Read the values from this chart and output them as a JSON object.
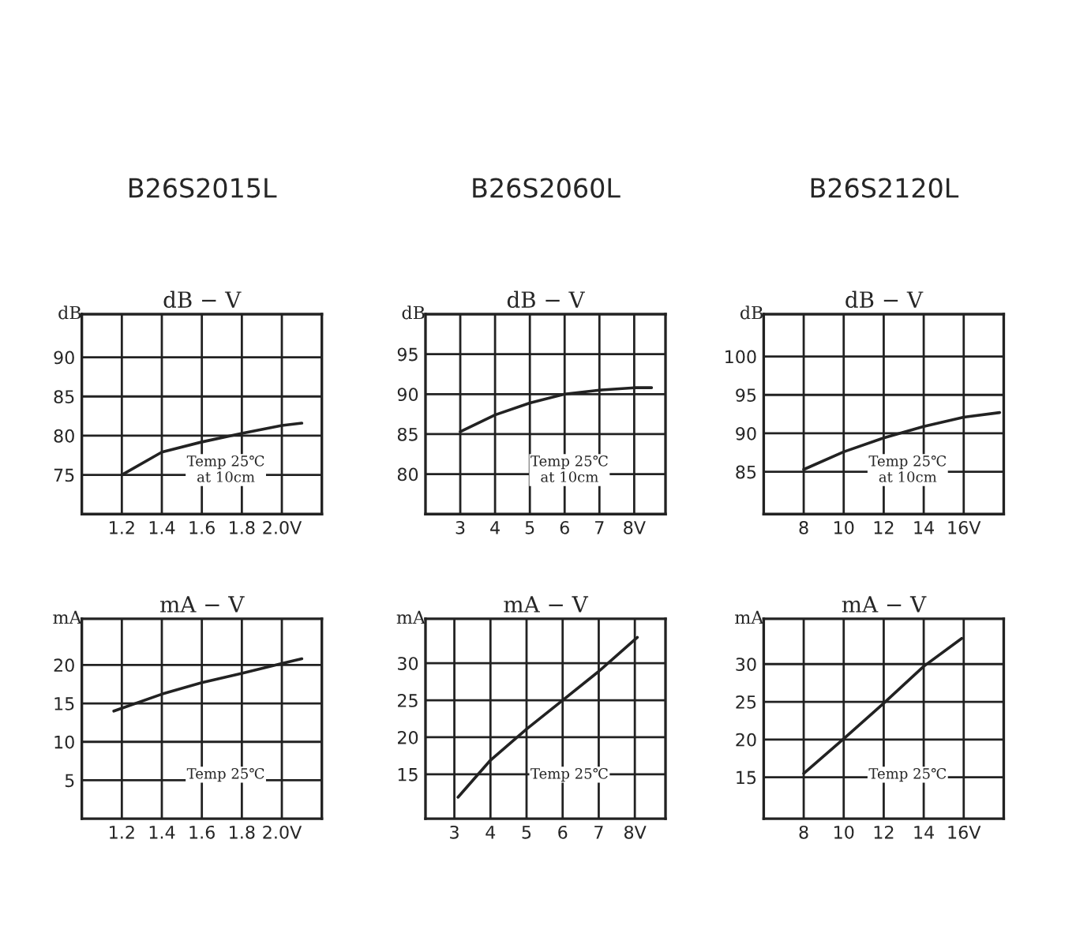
{
  "chart_data": [
    {
      "type": "line",
      "subtitle": "B26S2015L",
      "title": "dB − V",
      "ylabel": "dB",
      "xlim": [
        1.0,
        2.2
      ],
      "ylim": [
        70,
        95.5
      ],
      "xticks": [
        1.2,
        1.4,
        1.6,
        1.8,
        {
          "value": 2.0,
          "label": "2.0V"
        }
      ],
      "yticks": [
        75,
        80,
        85,
        90
      ],
      "grid": true,
      "annotations": [
        "Temp 25℃\nat 10cm"
      ],
      "series": [
        {
          "color": "#222222",
          "x": [
            1.2,
            1.4,
            1.6,
            1.8,
            2.0,
            2.1
          ],
          "values": [
            75,
            77.9,
            79.2,
            80.3,
            81.3,
            81.6
          ]
        }
      ]
    },
    {
      "type": "line",
      "subtitle": "B26S2060L",
      "title": "dB − V",
      "ylabel": "dB",
      "xlim": [
        2.0,
        8.9
      ],
      "ylim": [
        75,
        100
      ],
      "xticks": [
        3,
        4,
        5,
        6,
        7,
        {
          "value": 8,
          "label": "8V"
        }
      ],
      "yticks": [
        80,
        85,
        90,
        95
      ],
      "grid": true,
      "annotations": [
        "Temp 25℃\nat 10cm"
      ],
      "series": [
        {
          "color": "#222222",
          "x": [
            3,
            4,
            5,
            6,
            7,
            8,
            8.5
          ],
          "values": [
            85.3,
            87.4,
            88.9,
            90.0,
            90.5,
            90.8,
            90.8
          ]
        }
      ]
    },
    {
      "type": "line",
      "subtitle": "B26S2120L",
      "title": "dB − V",
      "ylabel": "dB",
      "xlim": [
        6,
        18
      ],
      "ylim": [
        79.5,
        105.5
      ],
      "xticks": [
        8,
        10,
        12,
        14,
        {
          "value": 16,
          "label": "16V"
        }
      ],
      "yticks": [
        85,
        90,
        95,
        100
      ],
      "grid": true,
      "annotations": [
        "Temp 25℃\nat 10cm"
      ],
      "series": [
        {
          "color": "#222222",
          "x": [
            8,
            10,
            12,
            14,
            16,
            17.8
          ],
          "values": [
            85.3,
            87.6,
            89.4,
            90.9,
            92.1,
            92.7
          ]
        }
      ]
    },
    {
      "type": "line",
      "title": "mA − V",
      "ylabel": "mA",
      "xlim": [
        1.0,
        2.2
      ],
      "ylim": [
        0,
        26
      ],
      "xticks": [
        1.2,
        1.4,
        1.6,
        1.8,
        {
          "value": 2.0,
          "label": "2.0V"
        }
      ],
      "yticks": [
        5,
        10,
        15,
        20
      ],
      "grid": true,
      "annotations": [
        "Temp 25℃"
      ],
      "series": [
        {
          "color": "#222222",
          "x": [
            1.16,
            1.4,
            1.6,
            1.8,
            2.0,
            2.1
          ],
          "values": [
            14.0,
            16.2,
            17.7,
            18.9,
            20.2,
            20.8
          ]
        }
      ]
    },
    {
      "type": "line",
      "title": "mA − V",
      "ylabel": "mA",
      "xlim": [
        2.2,
        8.85
      ],
      "ylim": [
        9,
        36
      ],
      "xticks": [
        3,
        4,
        5,
        6,
        7,
        {
          "value": 8,
          "label": "8V"
        }
      ],
      "yticks": [
        15,
        20,
        25,
        30
      ],
      "grid": true,
      "annotations": [
        "Temp 25℃"
      ],
      "series": [
        {
          "color": "#222222",
          "x": [
            3.1,
            4,
            5,
            6,
            7,
            8.07
          ],
          "values": [
            11.9,
            16.9,
            21.1,
            25.0,
            28.9,
            33.5
          ]
        }
      ]
    },
    {
      "type": "line",
      "title": "mA − V",
      "ylabel": "mA",
      "xlim": [
        6,
        18
      ],
      "ylim": [
        9.5,
        36
      ],
      "xticks": [
        8,
        10,
        12,
        14,
        {
          "value": 16,
          "label": "16V"
        }
      ],
      "yticks": [
        15,
        20,
        25,
        30
      ],
      "grid": true,
      "annotations": [
        "Temp 25℃"
      ],
      "series": [
        {
          "color": "#222222",
          "x": [
            8,
            10,
            12,
            14,
            15.9
          ],
          "values": [
            15.5,
            20.1,
            24.8,
            29.7,
            33.4
          ]
        }
      ]
    }
  ]
}
